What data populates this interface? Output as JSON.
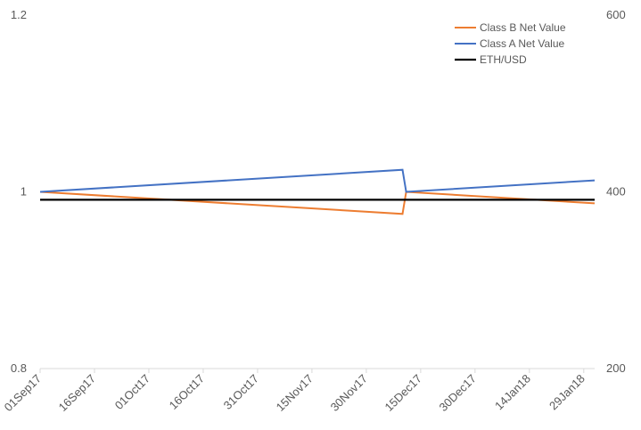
{
  "chart_data": {
    "type": "line",
    "title": "",
    "x_ticks": [
      "01Sep17",
      "16Sep17",
      "01Oct17",
      "16Oct17",
      "31Oct17",
      "15Nov17",
      "30Nov17",
      "15Dec17",
      "30Dec17",
      "14Jan18",
      "29Jan18"
    ],
    "y_left": {
      "min": 0.8,
      "max": 1.2,
      "ticks": [
        "0.8",
        "1",
        "1.2"
      ]
    },
    "y_right": {
      "min": 200,
      "max": 600,
      "ticks": [
        "200",
        "400",
        "600"
      ]
    },
    "grid": false,
    "legend_position": "top-right",
    "series": [
      {
        "name": "Class B Net Value",
        "axis": "left",
        "color": "#ED7D31",
        "points": [
          [
            "01Sep17",
            1.0
          ],
          [
            "10Dec17",
            0.975
          ],
          [
            "11Dec17",
            1.0
          ],
          [
            "01Feb18",
            0.987
          ]
        ]
      },
      {
        "name": "Class A Net Value",
        "axis": "left",
        "color": "#4472C4",
        "points": [
          [
            "01Sep17",
            1.0
          ],
          [
            "10Dec17",
            1.025
          ],
          [
            "11Dec17",
            1.0
          ],
          [
            "01Feb18",
            1.013
          ]
        ]
      },
      {
        "name": "ETH/USD",
        "axis": "right",
        "color": "#000000",
        "points": [
          [
            "01Sep17",
            391
          ],
          [
            "01Feb18",
            391
          ]
        ]
      }
    ]
  }
}
